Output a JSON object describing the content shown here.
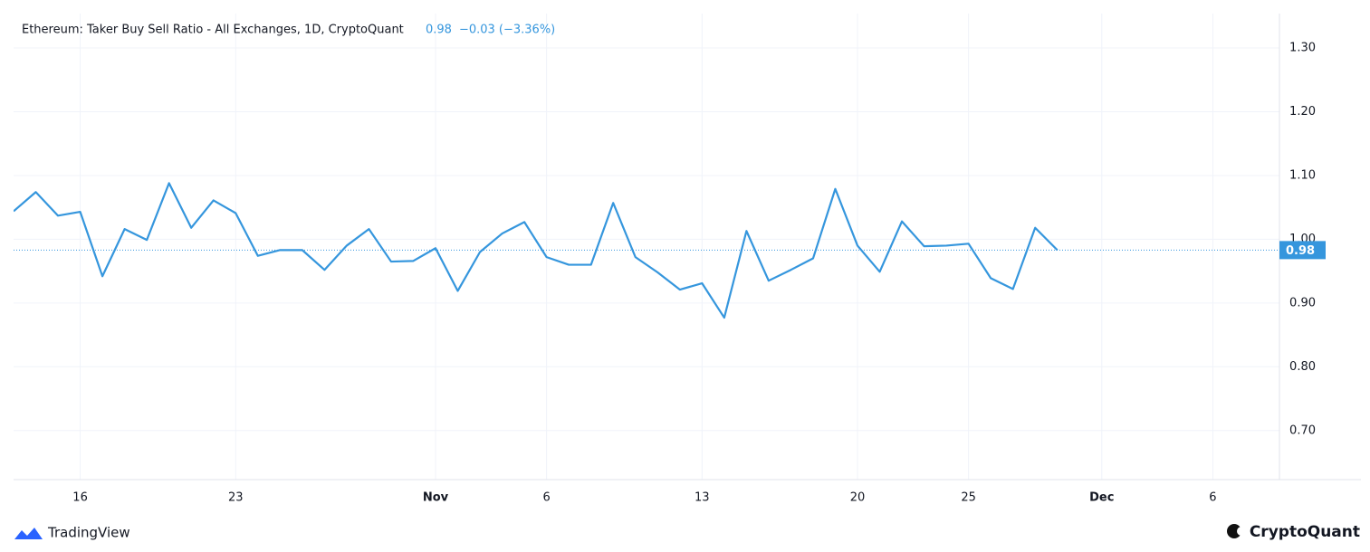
{
  "chart_data": {
    "type": "line",
    "title": "Ethereum: Taker Buy Sell Ratio - All Exchanges, 1D, CryptoQuant",
    "last_label": "0.98",
    "change_label": "−0.03 (−3.36%)",
    "watermark_left": "TradingView",
    "watermark_right": "CryptoQuant",
    "x": [
      "10-13",
      "10-14",
      "10-15",
      "10-16",
      "10-17",
      "10-18",
      "10-19",
      "10-20",
      "10-21",
      "10-22",
      "10-23",
      "10-24",
      "10-25",
      "10-26",
      "10-27",
      "10-28",
      "10-29",
      "10-30",
      "10-31",
      "11-01",
      "11-02",
      "11-03",
      "11-04",
      "11-05",
      "11-06",
      "11-07",
      "11-08",
      "11-09",
      "11-10",
      "11-11",
      "11-12",
      "11-13",
      "11-14",
      "11-15",
      "11-16",
      "11-17",
      "11-18",
      "11-19",
      "11-20",
      "11-21",
      "11-22",
      "11-23",
      "11-24",
      "11-25",
      "11-26",
      "11-27",
      "11-28",
      "11-29"
    ],
    "series": [
      {
        "name": "Taker Buy Sell Ratio",
        "color": "#3596dd",
        "values": [
          1.044,
          1.074,
          1.037,
          1.043,
          0.942,
          1.016,
          0.999,
          1.088,
          1.018,
          1.061,
          1.041,
          0.974,
          0.983,
          0.983,
          0.952,
          0.99,
          1.016,
          0.965,
          0.966,
          0.986,
          0.919,
          0.98,
          1.009,
          1.027,
          0.972,
          0.96,
          0.96,
          1.057,
          0.972,
          0.948,
          0.921,
          0.931,
          0.877,
          1.013,
          0.935,
          0.952,
          0.97,
          1.079,
          0.99,
          0.949,
          1.028,
          0.989,
          0.99,
          0.993,
          0.939,
          0.922,
          1.018,
          0.983
        ]
      }
    ],
    "xlim": [
      "10-13",
      "12-09"
    ],
    "xticks": [
      {
        "value": "10-16",
        "label": "16"
      },
      {
        "value": "10-23",
        "label": "23"
      },
      {
        "value": "11-01",
        "label": "Nov"
      },
      {
        "value": "11-06",
        "label": "6"
      },
      {
        "value": "11-13",
        "label": "13"
      },
      {
        "value": "11-20",
        "label": "20"
      },
      {
        "value": "11-25",
        "label": "25"
      },
      {
        "value": "12-01",
        "label": "Dec"
      },
      {
        "value": "12-06",
        "label": "6"
      }
    ],
    "ylim": [
      0.623,
      1.354
    ],
    "yticks": [
      {
        "value": 0.7,
        "label": "0.70"
      },
      {
        "value": 0.8,
        "label": "0.80"
      },
      {
        "value": 0.9,
        "label": "0.90"
      },
      {
        "value": 1.0,
        "label": "1.00"
      },
      {
        "value": 1.1,
        "label": "1.10"
      },
      {
        "value": 1.2,
        "label": "1.20"
      },
      {
        "value": 1.3,
        "label": "1.30"
      }
    ],
    "grid": true
  }
}
